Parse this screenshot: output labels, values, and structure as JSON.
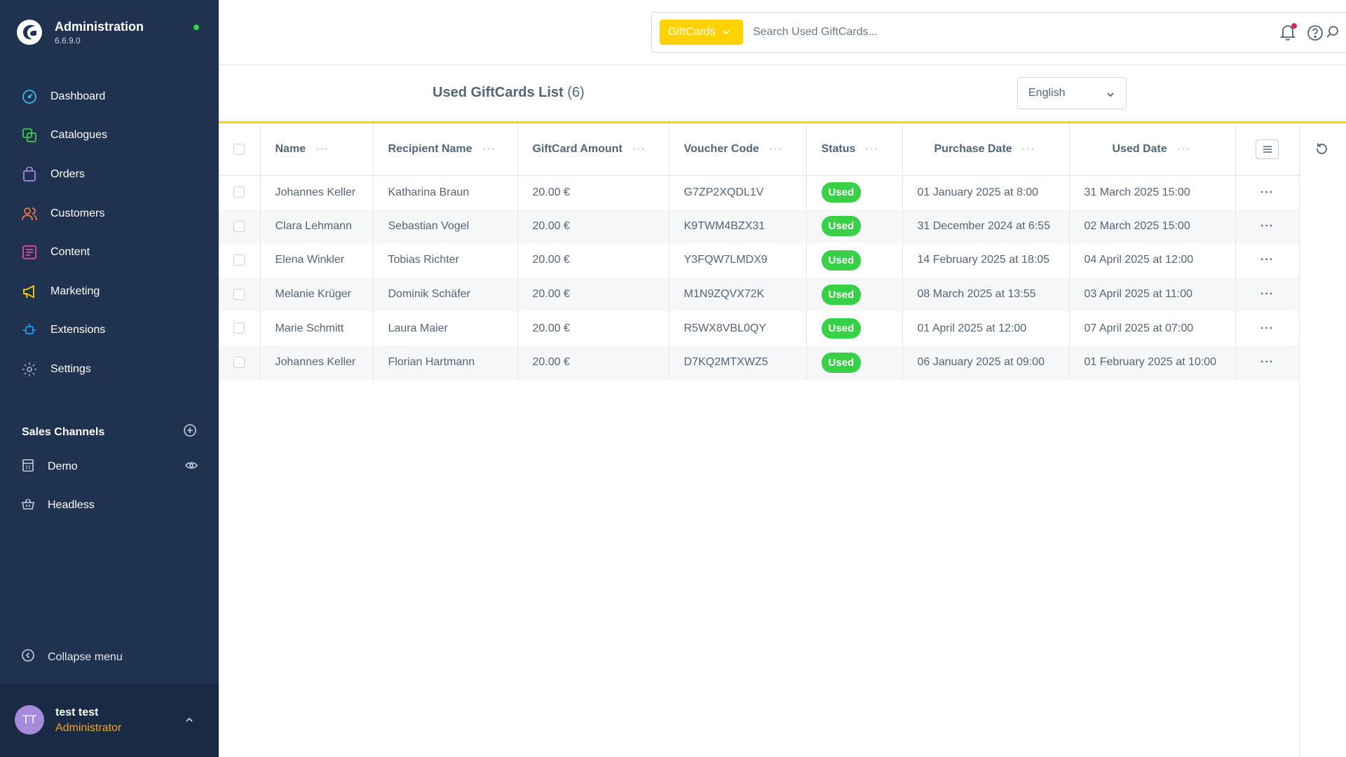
{
  "app": {
    "title": "Administration",
    "version": "6.6.9.0"
  },
  "nav": [
    {
      "label": "Dashboard",
      "icon": "dashboard-icon"
    },
    {
      "label": "Catalogues",
      "icon": "catalogues-icon"
    },
    {
      "label": "Orders",
      "icon": "orders-icon"
    },
    {
      "label": "Customers",
      "icon": "customers-icon"
    },
    {
      "label": "Content",
      "icon": "content-icon"
    },
    {
      "label": "Marketing",
      "icon": "marketing-icon"
    },
    {
      "label": "Extensions",
      "icon": "extensions-icon"
    },
    {
      "label": "Settings",
      "icon": "settings-icon"
    }
  ],
  "sales_channels": {
    "title": "Sales Channels",
    "items": [
      {
        "label": "Demo"
      },
      {
        "label": "Headless"
      }
    ]
  },
  "collapse_label": "Collapse menu",
  "user": {
    "initials": "TT",
    "name": "test test",
    "role": "Administrator"
  },
  "search": {
    "type_label": "GiftCards",
    "placeholder": "Search Used GiftCards..."
  },
  "list": {
    "title": "Used GiftCards List",
    "count": "(6)"
  },
  "language": "English",
  "columns": {
    "name": "Name",
    "recipient": "Recipient Name",
    "amount": "GiftCard Amount",
    "code": "Voucher Code",
    "status": "Status",
    "purchase": "Purchase Date",
    "used": "Used Date"
  },
  "rows": [
    {
      "name": "Johannes Keller",
      "recipient": "Katharina Braun",
      "amount": "20.00 €",
      "code": "G7ZP2XQDL1V",
      "status": "Used",
      "purchase": "01 January 2025 at 8:00",
      "used": "31 March 2025 15:00"
    },
    {
      "name": "Clara Lehmann",
      "recipient": "Sebastian Vogel",
      "amount": "20.00 €",
      "code": "K9TWM4BZX31",
      "status": "Used",
      "purchase": "31 December 2024 at 6:55",
      "used": "02 March 2025 15:00"
    },
    {
      "name": "Elena Winkler",
      "recipient": "Tobias Richter",
      "amount": "20.00 €",
      "code": "Y3FQW7LMDX9",
      "status": "Used",
      "purchase": "14 February 2025 at 18:05",
      "used": "04 April 2025 at 12:00"
    },
    {
      "name": "Melanie Krüger",
      "recipient": "Dominik Schäfer",
      "amount": "20.00 €",
      "code": "M1N9ZQVX72K",
      "status": "Used",
      "purchase": "08 March 2025 at 13:55",
      "used": "03 April 2025 at 11:00"
    },
    {
      "name": "Marie Schmitt",
      "recipient": "Laura Maier",
      "amount": "20.00 €",
      "code": "R5WX8VBL0QY",
      "status": "Used",
      "purchase": "01 April 2025 at 12:00",
      "used": "07 April 2025 at 07:00"
    },
    {
      "name": "Johannes Keller",
      "recipient": "Florian Hartmann",
      "amount": "20.00 €",
      "code": "D7KQ2MTXWZ5",
      "status": "Used",
      "purchase": "06 January 2025 at 09:00",
      "used": "01 February 2025 at 10:00"
    }
  ],
  "colors": {
    "sidebar_bg": "#1f3351",
    "accent_yellow": "#ffd200",
    "status_green": "#37d046",
    "role_orange": "#f5a623"
  }
}
